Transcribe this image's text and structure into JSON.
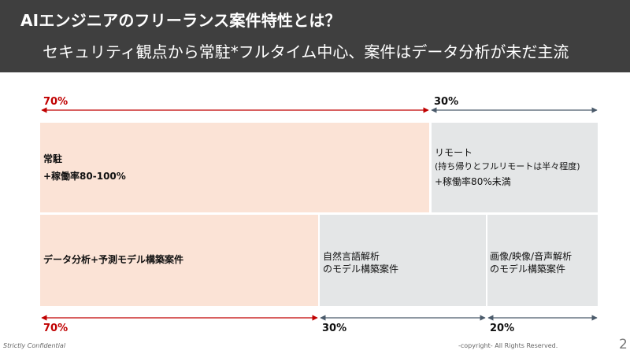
{
  "header": {
    "title": "AIエンジニアのフリーランス案件特性とは？",
    "subtitle": "セキュリティ観点から常駐*フルタイム中心、案件はデータ分析が未だ主流"
  },
  "top_row": {
    "left_pct": "70%",
    "right_pct": "30%",
    "left_block": {
      "line1": "常駐",
      "line2": "+稼働率80-100%"
    },
    "right_block": {
      "line1": "リモート",
      "line2": "(持ち帰りとフルリモートは半々程度)",
      "line3": "+稼働率80%未満"
    }
  },
  "bottom_row": {
    "left_pct": "70%",
    "middle_pct": "30%",
    "right_pct": "20%",
    "left_block": {
      "line1": "データ分析+予測モデル構築案件"
    },
    "middle_block": {
      "line1": "自然言語解析",
      "line2": "のモデル構築案件"
    },
    "right_block": {
      "line1": "画像/映像/音声解析",
      "line2": "のモデル構築案件"
    }
  },
  "colors": {
    "header_bg": "#3f3f3f",
    "accent_red": "#c00000",
    "peach": "#fbe3d6",
    "gray": "#e4e6e7",
    "arrow_blue": "#4a5a6a"
  },
  "footer": {
    "left": "Strictly Confidential",
    "center": "-copyright- All Rights Reserved.",
    "page_number": "2"
  }
}
